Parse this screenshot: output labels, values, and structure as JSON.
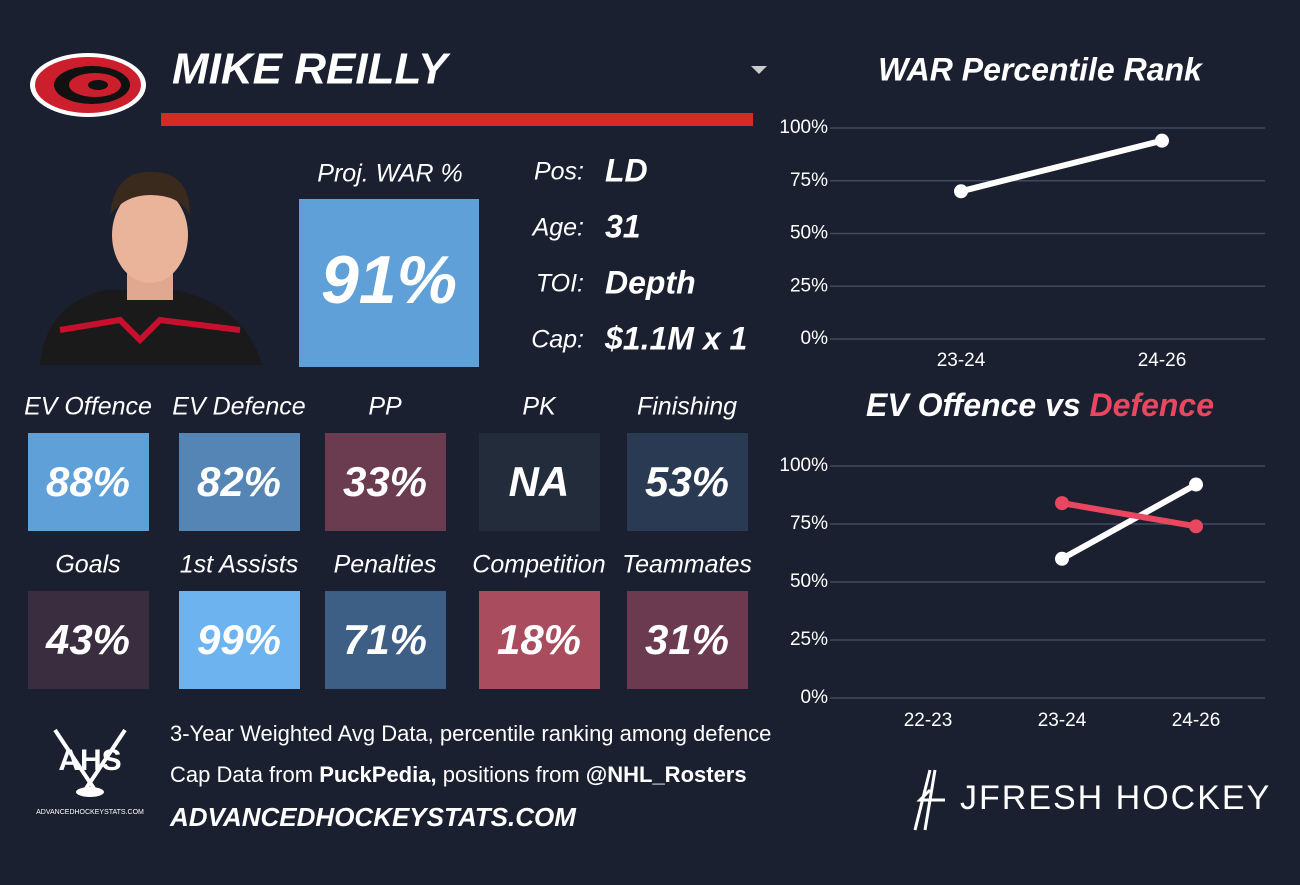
{
  "player": {
    "name": "MIKE REILLY",
    "proj_label": "Proj. WAR %",
    "proj_value": "91%",
    "proj_color": "#5fa0d8",
    "bio": [
      {
        "label": "Pos:",
        "value": "LD"
      },
      {
        "label": "Age:",
        "value": "31"
      },
      {
        "label": "TOI:",
        "value": "Depth"
      },
      {
        "label": "Cap:",
        "value": "$1.1M x 1"
      }
    ]
  },
  "tiles": [
    {
      "label": "EV Offence",
      "value": "88%",
      "color": "#5fa0d8"
    },
    {
      "label": "EV Defence",
      "value": "82%",
      "color": "#5585b5"
    },
    {
      "label": "PP",
      "value": "33%",
      "color": "#6b3b50"
    },
    {
      "label": "PK",
      "value": "NA",
      "color": "#232c3b"
    },
    {
      "label": "Finishing",
      "value": "53%",
      "color": "#2a3a52"
    },
    {
      "label": "Goals",
      "value": "43%",
      "color": "#3a2d40"
    },
    {
      "label": "1st Assists",
      "value": "99%",
      "color": "#6db3f0"
    },
    {
      "label": "Penalties",
      "value": "71%",
      "color": "#3d5f85"
    },
    {
      "label": "Competition",
      "value": "18%",
      "color": "#a84c5e"
    },
    {
      "label": "Teammates",
      "value": "31%",
      "color": "#6b3a50"
    }
  ],
  "footer": {
    "line1": "3-Year Weighted Avg Data, percentile ranking among defence",
    "line2a": "Cap Data from",
    "line2b": "PuckPedia,",
    "line2c": "positions from",
    "line2d": "@NHL_Rosters",
    "site": "ADVANCEDHOCKEYSTATS.COM",
    "ahs": "AHS",
    "ahs_small": "ADVANCEDHOCKEYSTATS.COM",
    "brand": "JFRESH HOCKEY"
  },
  "chart_data": [
    {
      "type": "line",
      "title": "WAR Percentile Rank",
      "categories": [
        "23-24",
        "24-26"
      ],
      "series": [
        {
          "color": "#ffffff",
          "values": [
            70,
            94
          ]
        }
      ],
      "ylim": [
        0,
        100
      ],
      "yticks": [
        {
          "value": 0,
          "label": "0%"
        },
        {
          "value": 25,
          "label": "25%"
        },
        {
          "value": 50,
          "label": "50%"
        },
        {
          "value": 75,
          "label": "75%"
        },
        {
          "value": 100,
          "label": "100%"
        }
      ],
      "grid": true
    },
    {
      "type": "line",
      "title_connector": "vs",
      "categories": [
        "22-23",
        "23-24",
        "24-26"
      ],
      "series": [
        {
          "name": "EV Offence",
          "color": "#ffffff",
          "values": [
            null,
            60,
            92
          ]
        },
        {
          "name": "Defence",
          "color": "#e8475f",
          "values": [
            null,
            84,
            74
          ]
        }
      ],
      "ylim": [
        0,
        100
      ],
      "yticks": [
        {
          "value": 0,
          "label": "0%"
        },
        {
          "value": 25,
          "label": "25%"
        },
        {
          "value": 50,
          "label": "50%"
        },
        {
          "value": 75,
          "label": "75%"
        },
        {
          "value": 100,
          "label": "100%"
        }
      ],
      "grid": true
    }
  ]
}
